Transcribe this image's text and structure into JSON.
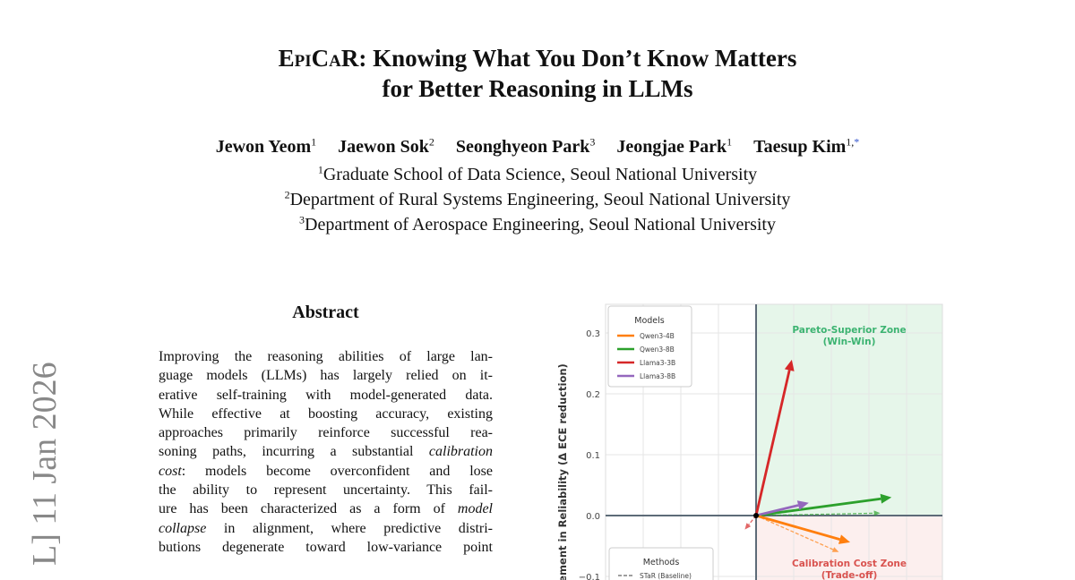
{
  "paper": {
    "title_line1_sc1": "Epi",
    "title_line1_sc2": "Ca",
    "title_line1_r": "R",
    "title_line1_rest": ": Knowing What You Don’t Know Matters",
    "title_line2": "for Better Reasoning in LLMs",
    "authors": [
      {
        "name": "Jewon Yeom",
        "sup": "1"
      },
      {
        "name": "Jaewon Sok",
        "sup": "2"
      },
      {
        "name": "Seonghyeon Park",
        "sup": "3"
      },
      {
        "name": "Jeongjae Park",
        "sup": "1"
      },
      {
        "name": "Taesup Kim",
        "sup": "1,",
        "star": "*"
      }
    ],
    "affiliations": [
      {
        "sup": "1",
        "text": "Graduate School of Data Science, Seoul National University"
      },
      {
        "sup": "2",
        "text": "Department of Rural Systems Engineering, Seoul National University"
      },
      {
        "sup": "3",
        "text": "Department of Aerospace Engineering, Seoul National University"
      }
    ],
    "arxiv_stamp": "L]  11 Jan 2026",
    "abstract_heading": "Abstract",
    "abstract_lines": [
      {
        "pre": "Improving the reasoning abilities of large lan-",
        "em": "",
        "post": ""
      },
      {
        "pre": "guage models (LLMs) has largely relied on it-",
        "em": "",
        "post": ""
      },
      {
        "pre": "erative self-training with model-generated data.",
        "em": "",
        "post": ""
      },
      {
        "pre": "While effective at boosting accuracy, existing",
        "em": "",
        "post": ""
      },
      {
        "pre": "approaches primarily reinforce successful rea-",
        "em": "",
        "post": ""
      },
      {
        "pre": "soning paths, incurring a substantial ",
        "em": "calibration",
        "post": ""
      },
      {
        "pre": "",
        "em": "cost",
        "post": ":  models become overconfident and lose"
      },
      {
        "pre": "the ability to represent uncertainty.  This fail-",
        "em": "",
        "post": ""
      },
      {
        "pre": "ure has been characterized as a form of ",
        "em": "model",
        "post": ""
      },
      {
        "pre": "",
        "em": "collapse",
        "post": " in alignment, where predictive distri-"
      },
      {
        "pre": "butions degenerate toward low-variance point",
        "em": "",
        "post": ""
      }
    ]
  },
  "chart_data": {
    "type": "quiver",
    "ylabel": "rovement in Reliability (Δ ECE reduction)",
    "ylim": [
      -0.105,
      0.347
    ],
    "xlim": [
      -4.0,
      4.95
    ],
    "x_units_note": "",
    "yticks": [
      "0.3",
      "0.2",
      "0.1",
      "0.0",
      "−0.1"
    ],
    "ytick_values": [
      0.3,
      0.2,
      0.1,
      0.0,
      -0.1
    ],
    "grid": true,
    "zones": [
      {
        "label": "Pareto-Superior Zone",
        "sublabel": "(Win-Win)",
        "color": "#3cb371",
        "fill": "#e6f6ea"
      },
      {
        "label": "Calibration Cost Zone",
        "sublabel": "(Trade-off)",
        "color": "#d9534f",
        "fill": "#fcefee"
      }
    ],
    "legend_models": {
      "title": "Models",
      "placement": "top-left",
      "items": [
        {
          "name": "Qwen3-4B",
          "color": "#ff7f0e"
        },
        {
          "name": "Qwen3-8B",
          "color": "#2ca02c"
        },
        {
          "name": "Llama3-3B",
          "color": "#d62728"
        },
        {
          "name": "Llama3-8B",
          "color": "#9467bd"
        }
      ]
    },
    "legend_methods": {
      "title": "Methods",
      "placement": "bottom-left",
      "items": [
        {
          "name": "STaR (Baseline)",
          "style": "dashed"
        }
      ]
    },
    "arrows": [
      {
        "model": "Llama3-3B",
        "method": "solid",
        "x": 0.95,
        "y": 0.256,
        "color": "#d62728"
      },
      {
        "model": "Qwen3-8B",
        "method": "solid",
        "x": 3.6,
        "y": 0.03,
        "color": "#2ca02c"
      },
      {
        "model": "Llama3-8B",
        "method": "solid",
        "x": 1.4,
        "y": 0.021,
        "color": "#9467bd"
      },
      {
        "model": "Qwen3-4B",
        "method": "solid",
        "x": 2.5,
        "y": -0.044,
        "color": "#ff7f0e"
      },
      {
        "model": "Qwen3-8B",
        "method": "STaR (Baseline)",
        "x": 3.3,
        "y": 0.004,
        "color": "#2ca02c"
      },
      {
        "model": "Qwen3-4B",
        "method": "STaR (Baseline)",
        "x": 2.2,
        "y": -0.06,
        "color": "#ff7f0e"
      },
      {
        "model": "Llama3-3B",
        "method": "STaR (Baseline)",
        "x": -0.3,
        "y": -0.023,
        "color": "#d62728"
      }
    ]
  }
}
